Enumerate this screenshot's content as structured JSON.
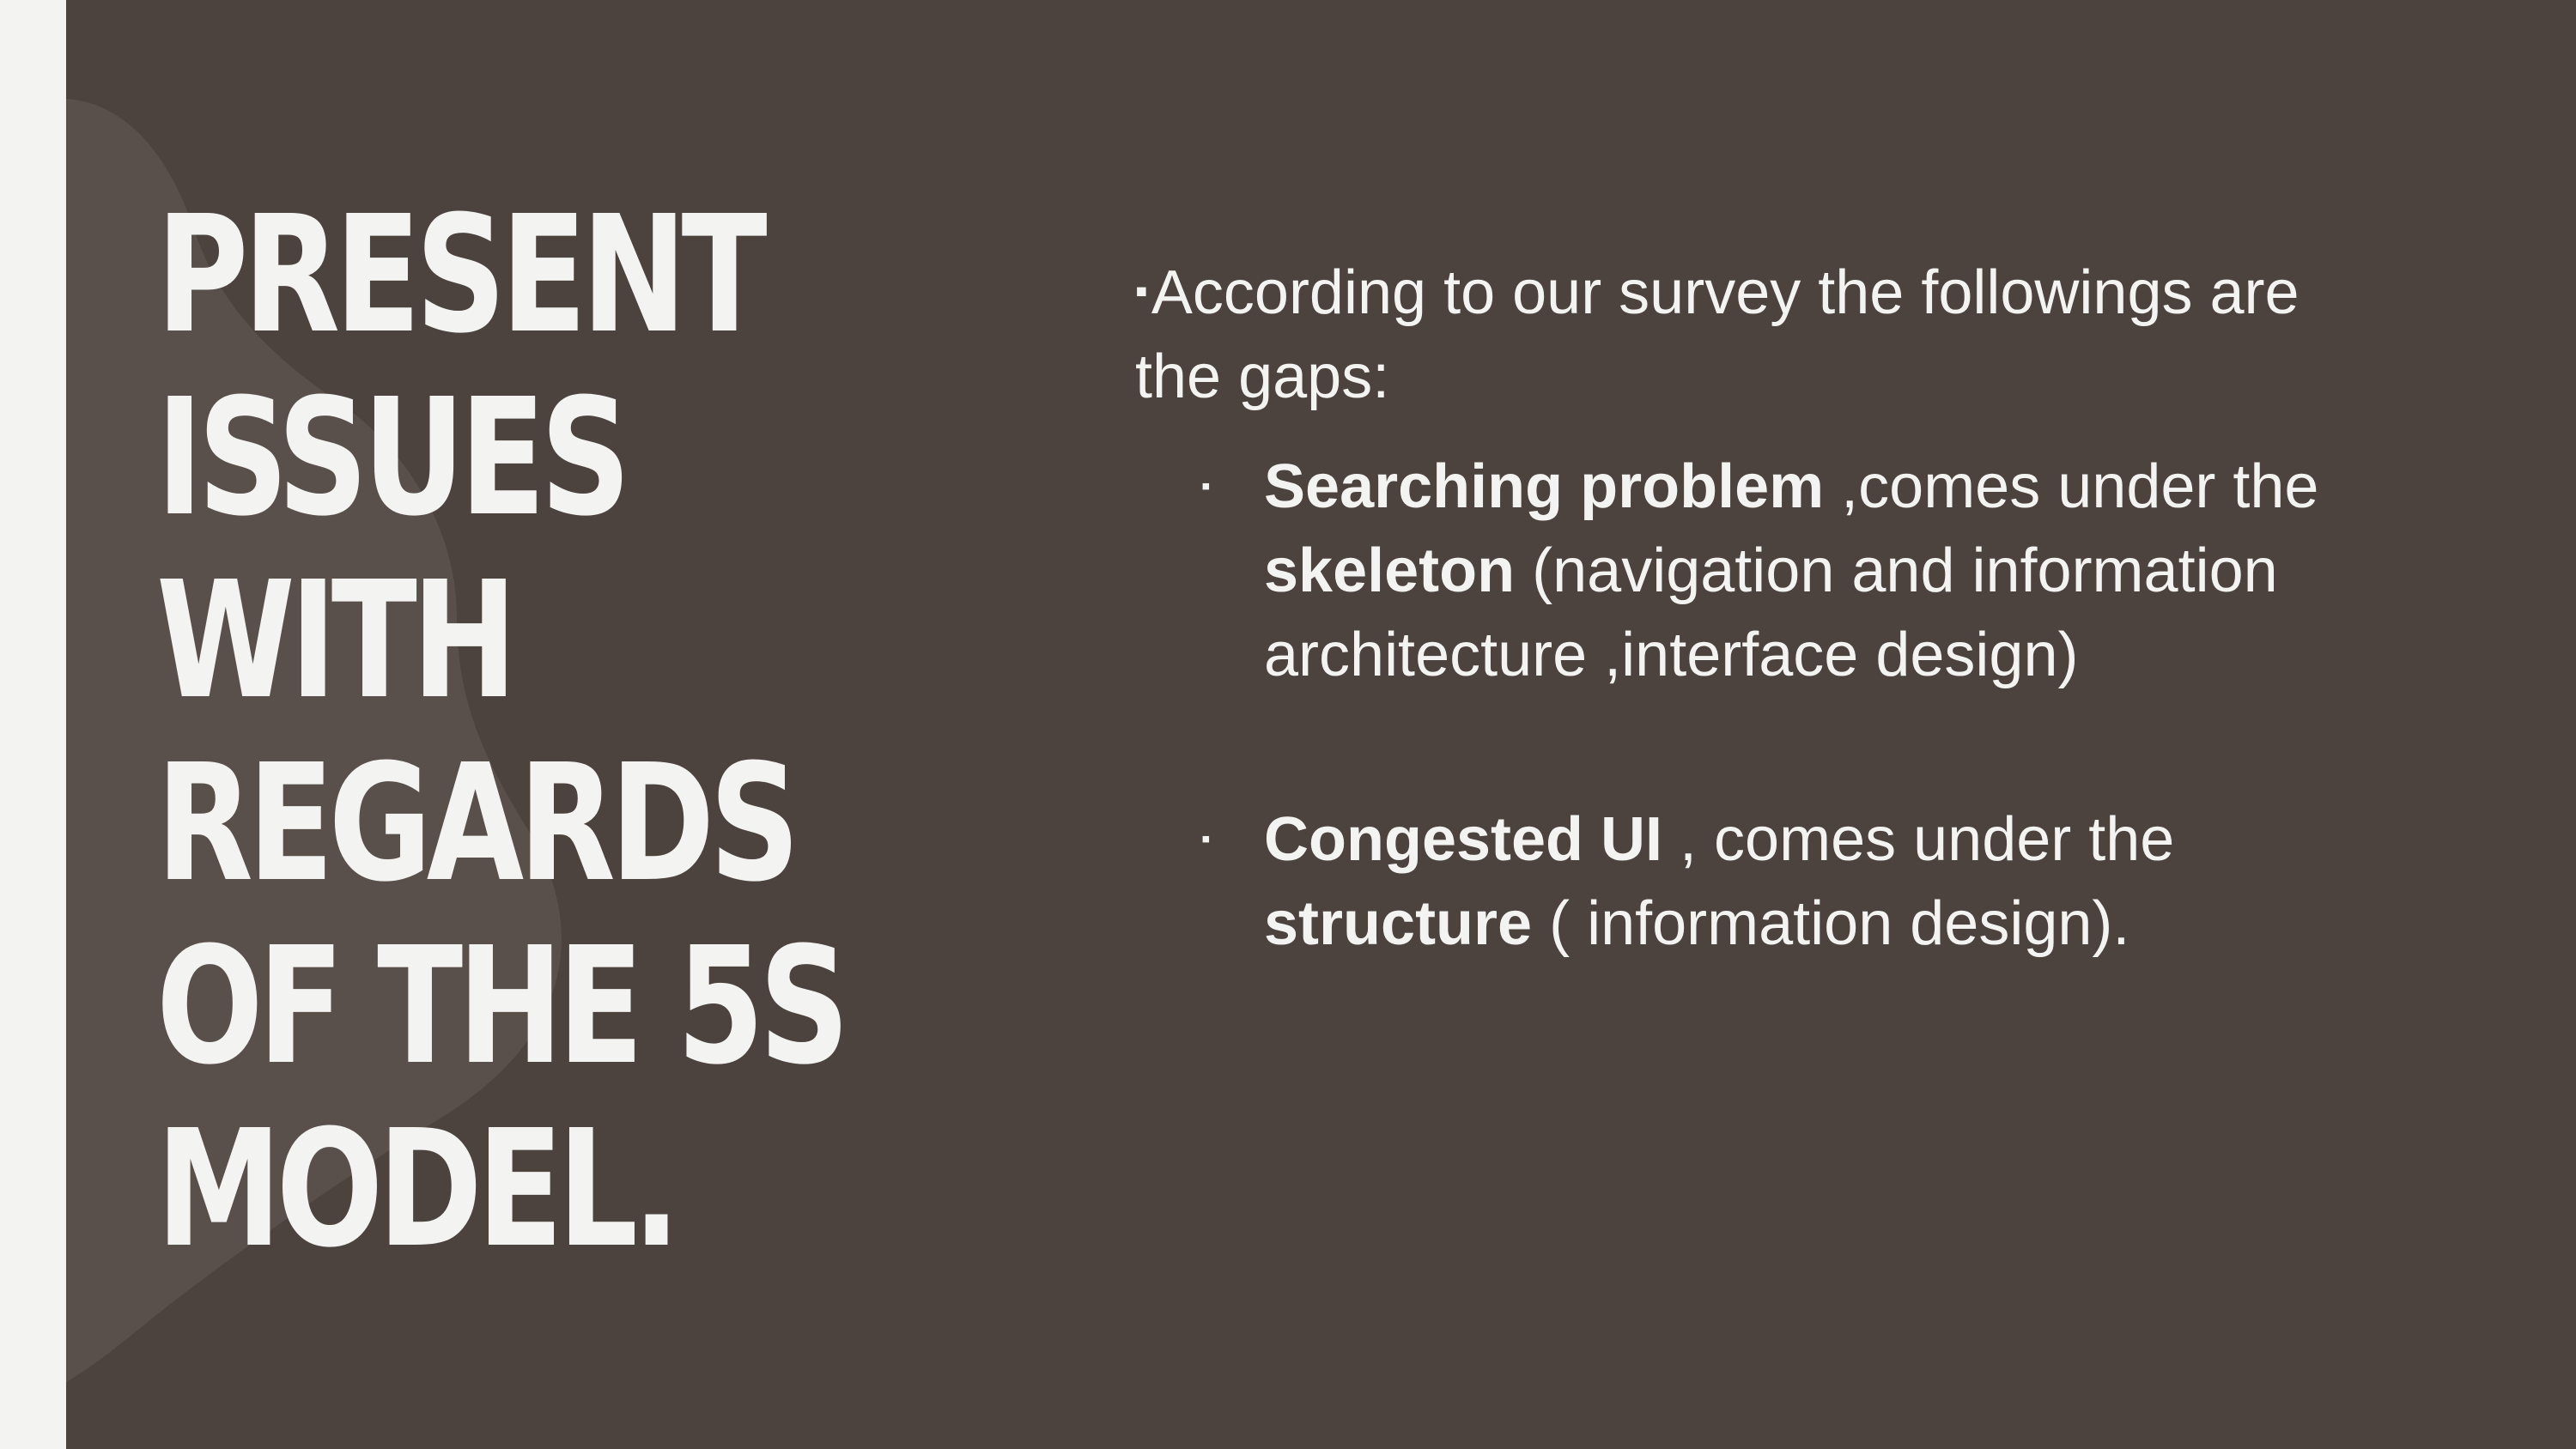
{
  "slide": {
    "title_lines": [
      "PRESENT",
      "ISSUES",
      "WITH",
      "REGARDS",
      "OF THE 5S",
      "MODEL."
    ],
    "intro": {
      "marker": "▪",
      "text": "According to our survey the followings are the gaps:"
    },
    "issues": [
      {
        "bullet": "▪",
        "bold_1": "Searching problem",
        "text_1": " ,comes under the",
        "bold_2": "skeleton",
        "text_2": " (navigation and information architecture ,interface design)"
      },
      {
        "bullet": "▪",
        "bold_1": "Congested UI",
        "text_1": " , comes under the",
        "bold_2": "structure",
        "text_2": " ( information design)."
      }
    ]
  },
  "colors": {
    "background": "#f3f3f1",
    "panel": "#4c423e",
    "wave": "#5a504b",
    "text": "#f3f3f1"
  }
}
